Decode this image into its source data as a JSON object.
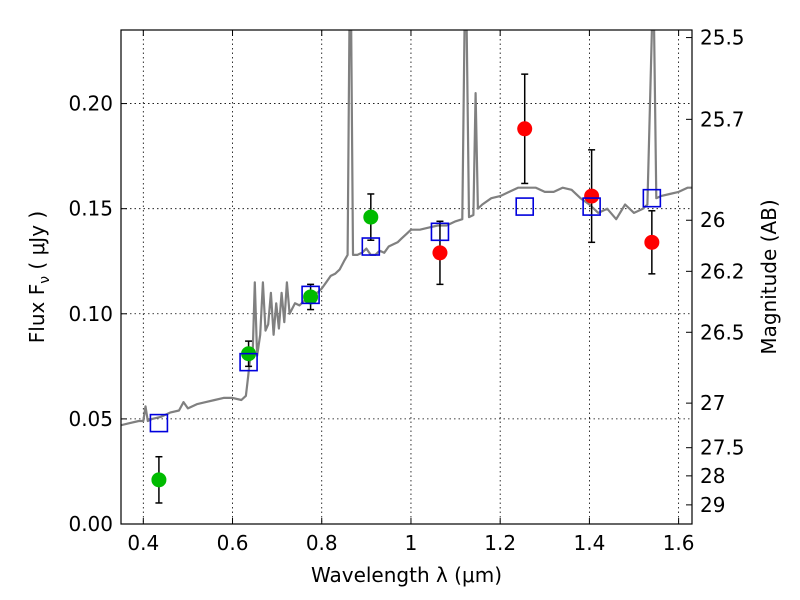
{
  "chart_data": {
    "type": "scatter",
    "xlabel": "Wavelength  λ (μm)",
    "ylabel": "Flux  F",
    "ylabel_sub": "ν",
    "ylabel_unit": " ( μJy )",
    "y2label": "Magnitude (AB)",
    "xlim": [
      0.35,
      1.63
    ],
    "ylim": [
      0.0,
      0.235
    ],
    "grid": true,
    "x_ticks": [
      {
        "value": 0.4,
        "label": "0.4"
      },
      {
        "value": 0.6,
        "label": "0.6"
      },
      {
        "value": 0.8,
        "label": "0.8"
      },
      {
        "value": 1.0,
        "label": "1"
      },
      {
        "value": 1.2,
        "label": "1.2"
      },
      {
        "value": 1.4,
        "label": "1.4"
      },
      {
        "value": 1.6,
        "label": "1.6"
      }
    ],
    "y_ticks": [
      {
        "value": 0.0,
        "label": "0.00"
      },
      {
        "value": 0.05,
        "label": "0.05"
      },
      {
        "value": 0.1,
        "label": "0.10"
      },
      {
        "value": 0.15,
        "label": "0.15"
      },
      {
        "value": 0.2,
        "label": "0.20"
      }
    ],
    "y2_ticks": [
      {
        "flux": 0.2314,
        "label": "25.5"
      },
      {
        "flux": 0.1925,
        "label": "25.7"
      },
      {
        "flux": 0.1445,
        "label": "26"
      },
      {
        "flux": 0.1202,
        "label": "26.2"
      },
      {
        "flux": 0.0912,
        "label": "26.5"
      },
      {
        "flux": 0.0575,
        "label": "27"
      },
      {
        "flux": 0.0363,
        "label": "27.5"
      },
      {
        "flux": 0.0229,
        "label": "28"
      },
      {
        "flux": 0.0091,
        "label": "29"
      }
    ],
    "series": [
      {
        "marker": "circle",
        "color": "#00bb00",
        "points": [
          {
            "x": 0.435,
            "y": 0.021,
            "err": 0.011
          },
          {
            "x": 0.636,
            "y": 0.081,
            "err": 0.006
          },
          {
            "x": 0.775,
            "y": 0.108,
            "err": 0.006
          },
          {
            "x": 0.91,
            "y": 0.146,
            "err": 0.011
          }
        ]
      },
      {
        "marker": "circle",
        "color": "#ff0000",
        "points": [
          {
            "x": 1.065,
            "y": 0.129,
            "err": 0.015
          },
          {
            "x": 1.255,
            "y": 0.188,
            "err": 0.026
          },
          {
            "x": 1.405,
            "y": 0.156,
            "err": 0.022
          },
          {
            "x": 1.54,
            "y": 0.134,
            "err": 0.015
          }
        ]
      },
      {
        "marker": "open-square",
        "color": "#0000dd",
        "points": [
          {
            "x": 0.435,
            "y": 0.048
          },
          {
            "x": 0.636,
            "y": 0.077
          },
          {
            "x": 0.775,
            "y": 0.109
          },
          {
            "x": 0.91,
            "y": 0.132
          },
          {
            "x": 1.065,
            "y": 0.139
          },
          {
            "x": 1.255,
            "y": 0.151
          },
          {
            "x": 1.405,
            "y": 0.151
          },
          {
            "x": 1.54,
            "y": 0.155
          }
        ]
      }
    ],
    "spectrum": {
      "color": "#808080",
      "points": [
        [
          0.35,
          0.047
        ],
        [
          0.37,
          0.048
        ],
        [
          0.39,
          0.049
        ],
        [
          0.4,
          0.049
        ],
        [
          0.405,
          0.056
        ],
        [
          0.41,
          0.049
        ],
        [
          0.42,
          0.05
        ],
        [
          0.44,
          0.051
        ],
        [
          0.46,
          0.053
        ],
        [
          0.48,
          0.054
        ],
        [
          0.49,
          0.058
        ],
        [
          0.5,
          0.055
        ],
        [
          0.52,
          0.057
        ],
        [
          0.54,
          0.058
        ],
        [
          0.56,
          0.059
        ],
        [
          0.58,
          0.06
        ],
        [
          0.6,
          0.06
        ],
        [
          0.62,
          0.059
        ],
        [
          0.63,
          0.061
        ],
        [
          0.635,
          0.07
        ],
        [
          0.64,
          0.08
        ],
        [
          0.645,
          0.08
        ],
        [
          0.65,
          0.115
        ],
        [
          0.655,
          0.08
        ],
        [
          0.662,
          0.09
        ],
        [
          0.668,
          0.115
        ],
        [
          0.674,
          0.092
        ],
        [
          0.68,
          0.095
        ],
        [
          0.686,
          0.11
        ],
        [
          0.692,
          0.09
        ],
        [
          0.698,
          0.105
        ],
        [
          0.704,
          0.093
        ],
        [
          0.71,
          0.11
        ],
        [
          0.716,
          0.096
        ],
        [
          0.722,
          0.115
        ],
        [
          0.728,
          0.1
        ],
        [
          0.74,
          0.105
        ],
        [
          0.75,
          0.104
        ],
        [
          0.76,
          0.106
        ],
        [
          0.77,
          0.108
        ],
        [
          0.78,
          0.11
        ],
        [
          0.79,
          0.11
        ],
        [
          0.8,
          0.112
        ],
        [
          0.81,
          0.115
        ],
        [
          0.82,
          0.118
        ],
        [
          0.83,
          0.119
        ],
        [
          0.84,
          0.121
        ],
        [
          0.85,
          0.125
        ],
        [
          0.858,
          0.128
        ],
        [
          0.862,
          0.235
        ],
        [
          0.866,
          0.235
        ],
        [
          0.87,
          0.128
        ],
        [
          0.88,
          0.128
        ],
        [
          0.89,
          0.129
        ],
        [
          0.9,
          0.131
        ],
        [
          0.91,
          0.128
        ],
        [
          0.92,
          0.128
        ],
        [
          0.93,
          0.13
        ],
        [
          0.94,
          0.129
        ],
        [
          0.95,
          0.132
        ],
        [
          0.96,
          0.133
        ],
        [
          0.97,
          0.134
        ],
        [
          0.98,
          0.136
        ],
        [
          0.99,
          0.138
        ],
        [
          1.0,
          0.14
        ],
        [
          1.02,
          0.14
        ],
        [
          1.04,
          0.141
        ],
        [
          1.06,
          0.142
        ],
        [
          1.08,
          0.142
        ],
        [
          1.1,
          0.144
        ],
        [
          1.115,
          0.145
        ],
        [
          1.12,
          0.235
        ],
        [
          1.125,
          0.235
        ],
        [
          1.13,
          0.146
        ],
        [
          1.14,
          0.147
        ],
        [
          1.145,
          0.205
        ],
        [
          1.15,
          0.15
        ],
        [
          1.16,
          0.152
        ],
        [
          1.18,
          0.155
        ],
        [
          1.2,
          0.156
        ],
        [
          1.22,
          0.158
        ],
        [
          1.24,
          0.16
        ],
        [
          1.26,
          0.16
        ],
        [
          1.28,
          0.16
        ],
        [
          1.3,
          0.158
        ],
        [
          1.32,
          0.158
        ],
        [
          1.34,
          0.16
        ],
        [
          1.36,
          0.159
        ],
        [
          1.38,
          0.155
        ],
        [
          1.4,
          0.152
        ],
        [
          1.42,
          0.148
        ],
        [
          1.44,
          0.15
        ],
        [
          1.46,
          0.145
        ],
        [
          1.48,
          0.152
        ],
        [
          1.5,
          0.148
        ],
        [
          1.52,
          0.15
        ],
        [
          1.53,
          0.152
        ],
        [
          1.54,
          0.235
        ],
        [
          1.545,
          0.235
        ],
        [
          1.55,
          0.155
        ],
        [
          1.56,
          0.156
        ],
        [
          1.58,
          0.157
        ],
        [
          1.6,
          0.158
        ],
        [
          1.62,
          0.16
        ],
        [
          1.63,
          0.16
        ]
      ]
    }
  }
}
